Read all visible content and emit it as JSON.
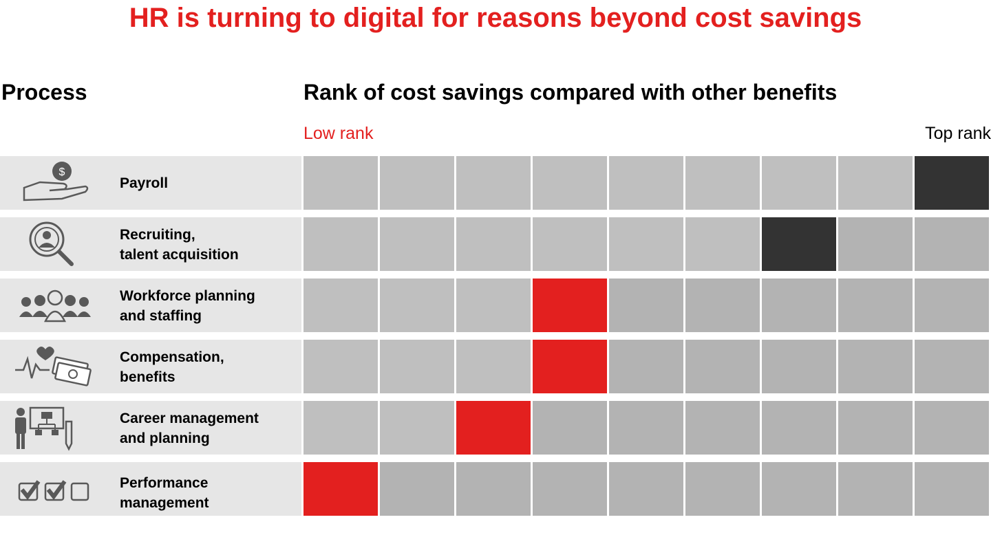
{
  "title": "HR is turning to digital for reasons beyond cost savings",
  "headers": {
    "process": "Process",
    "rank": "Rank of cost savings compared with other benefits",
    "low_rank": "Low rank",
    "top_rank": "Top rank"
  },
  "colors": {
    "title": "#e3201f",
    "low_rank": "#e3201f",
    "red_cell": "#e3201f",
    "dark_cell": "#333333",
    "light_cell": "#bfbfbf",
    "mid_cell": "#b3b3b3",
    "row_bg": "#e6e6e6"
  },
  "chart_data": {
    "type": "heatmap",
    "title": "HR is turning to digital for reasons beyond cost savings",
    "xlabel": "Rank of cost savings compared with other benefits",
    "ylabel": "Process",
    "columns": 9,
    "x_endpoints": [
      "Low rank",
      "Top rank"
    ],
    "rows": [
      {
        "process": "Payroll",
        "icon": "hand-dollar-icon",
        "rank_position": 9,
        "highlight": "dark"
      },
      {
        "process": "Recruiting,\ntalent acquisition",
        "icon": "magnifier-person-icon",
        "rank_position": 7,
        "highlight": "dark"
      },
      {
        "process": "Workforce planning\nand staffing",
        "icon": "group-people-icon",
        "rank_position": 4,
        "highlight": "red"
      },
      {
        "process": "Compensation,\nbenefits",
        "icon": "heartbeat-money-icon",
        "rank_position": 4,
        "highlight": "red"
      },
      {
        "process": "Career management\nand planning",
        "icon": "person-orgchart-icon",
        "rank_position": 3,
        "highlight": "red"
      },
      {
        "process": "Performance\nmanagement",
        "icon": "checkboxes-icon",
        "rank_position": 1,
        "highlight": "red"
      }
    ]
  }
}
